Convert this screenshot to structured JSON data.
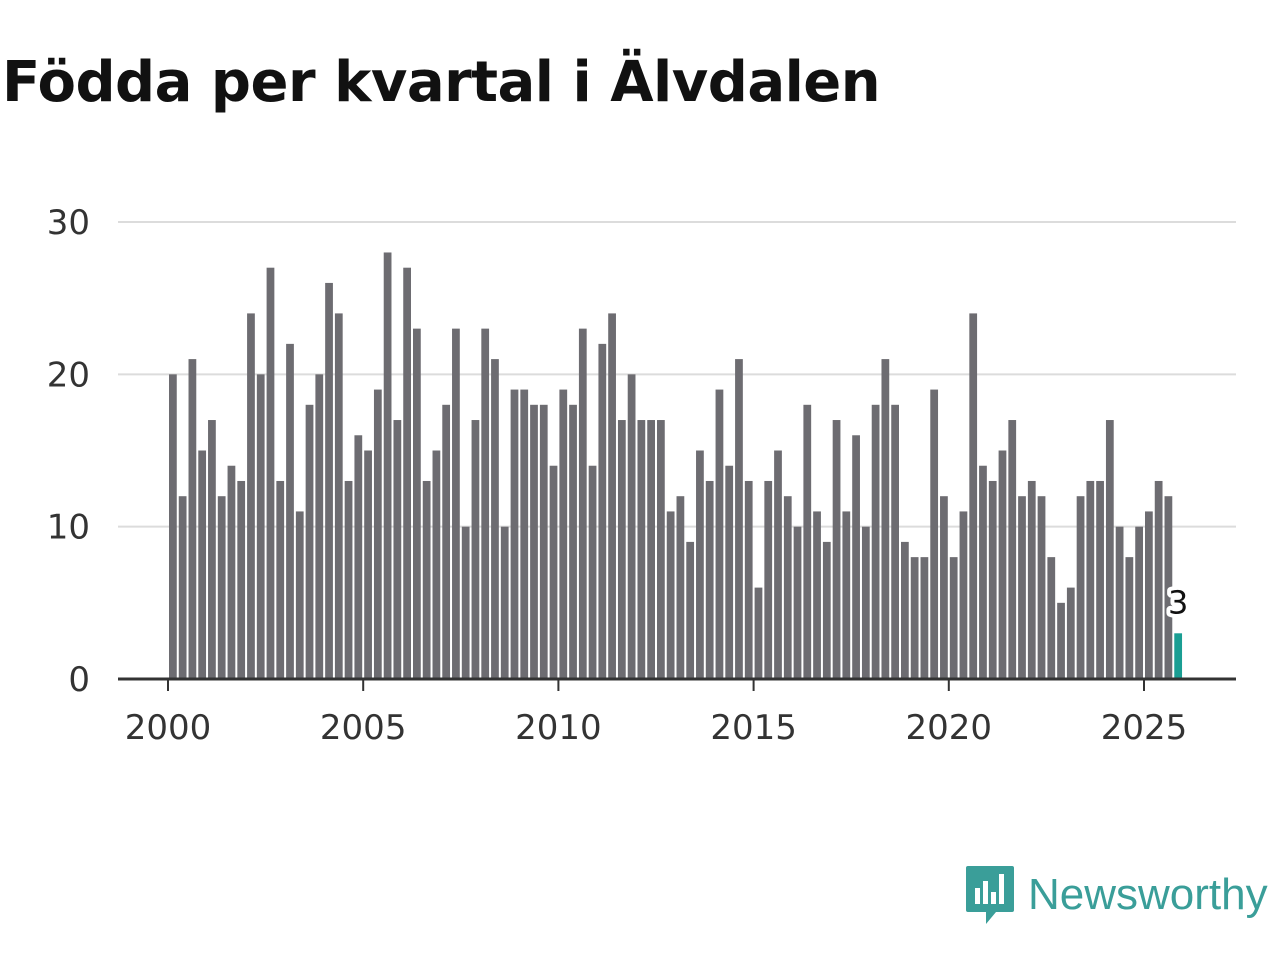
{
  "title": "Födda per kvartal i Älvdalen",
  "brand": {
    "name": "Newsworthy",
    "icon": "newsworthy-logo-icon"
  },
  "colors": {
    "bar": "#6d6c71",
    "highlight": "#1a9e93",
    "grid": "#dcdcdc",
    "axis": "#333333",
    "brand": "#3a9e99"
  },
  "chart_data": {
    "type": "bar",
    "title": "Födda per kvartal i Älvdalen",
    "xlabel": "",
    "ylabel": "",
    "ylim": [
      0,
      30
    ],
    "yticks": [
      0,
      10,
      20,
      30
    ],
    "xticks": [
      "2000",
      "2005",
      "2010",
      "2015",
      "2020",
      "2025"
    ],
    "x_start_year": 2000,
    "x_end_year": 2027,
    "grid": true,
    "highlight_index": 103,
    "annotation": {
      "text": "3",
      "index": 103,
      "value": 3
    },
    "values": [
      20,
      12,
      21,
      15,
      17,
      12,
      14,
      13,
      24,
      20,
      27,
      13,
      22,
      11,
      18,
      20,
      26,
      24,
      13,
      16,
      15,
      19,
      28,
      17,
      27,
      23,
      13,
      15,
      18,
      23,
      10,
      17,
      23,
      21,
      10,
      19,
      19,
      18,
      18,
      14,
      19,
      18,
      23,
      14,
      22,
      24,
      17,
      20,
      17,
      17,
      17,
      11,
      12,
      9,
      15,
      13,
      19,
      14,
      21,
      13,
      6,
      13,
      15,
      12,
      10,
      18,
      11,
      9,
      17,
      11,
      16,
      10,
      18,
      21,
      18,
      9,
      8,
      8,
      19,
      12,
      8,
      11,
      24,
      14,
      13,
      15,
      17,
      12,
      13,
      12,
      8,
      5,
      6,
      12,
      13,
      13,
      17,
      10,
      8,
      10,
      11,
      13,
      12,
      3
    ]
  }
}
